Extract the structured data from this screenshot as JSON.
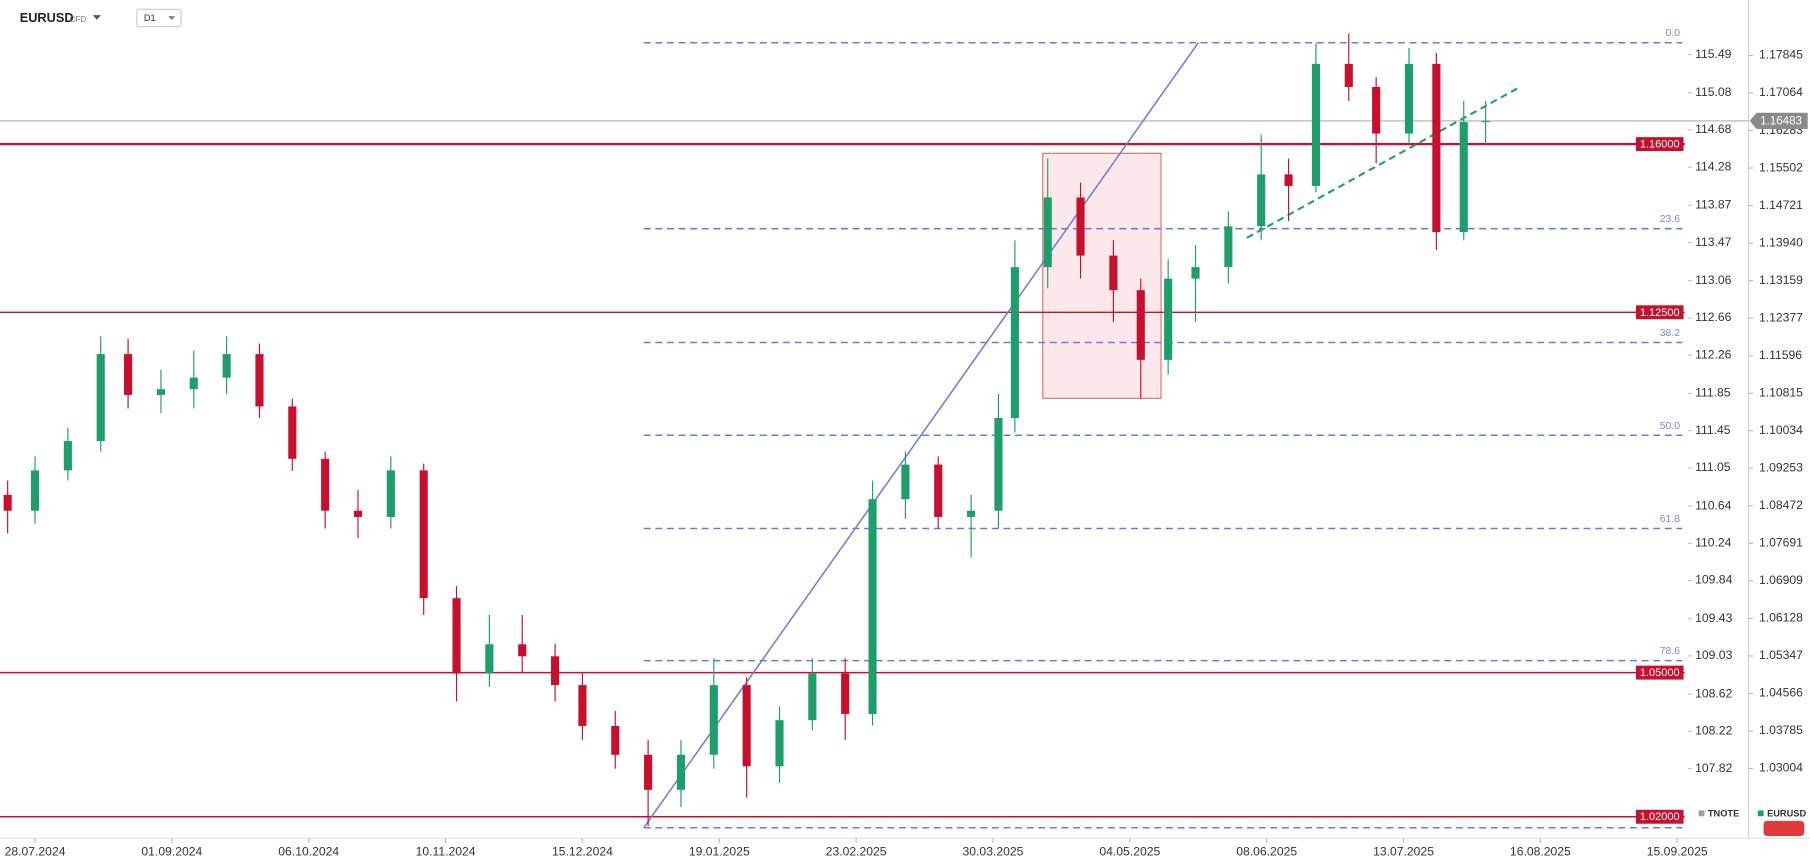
{
  "chart_data": {
    "type": "candlestick",
    "title": "EURUSD",
    "subtitle": "CFD",
    "timeframe": "D1",
    "xlim": [
      -6.4,
      302
    ],
    "xticks": [
      {
        "value": 0,
        "label": "28.07.2024"
      },
      {
        "value": 25,
        "label": "01.09.2024"
      },
      {
        "value": 50,
        "label": "06.10.2024"
      },
      {
        "value": 75,
        "label": "10.11.2024"
      },
      {
        "value": 100,
        "label": "15.12.2024"
      },
      {
        "value": 125,
        "label": "19.01.2025"
      },
      {
        "value": 150,
        "label": "23.02.2025"
      },
      {
        "value": 175,
        "label": "30.03.2025"
      },
      {
        "value": 200,
        "label": "04.05.2025"
      },
      {
        "value": 225,
        "label": "08.06.2025"
      },
      {
        "value": 250,
        "label": "13.07.2025"
      },
      {
        "value": 275,
        "label": "16.08.2025"
      },
      {
        "value": 300,
        "label": "15.09.2025"
      }
    ],
    "ylim": [
      1.016,
      1.19
    ],
    "yticks": [
      1.17845,
      1.17064,
      1.16283,
      1.15502,
      1.14721,
      {
        "value": 1.1394,
        "label": "1.13940"
      },
      1.13159,
      1.12377,
      1.11596,
      1.10815,
      1.10034,
      1.09253,
      1.08472,
      1.07691,
      1.06909,
      1.06128,
      1.05347,
      1.04566,
      1.03785,
      1.03004
    ],
    "y2lim": [
      107.096,
      116.076
    ],
    "y2ticks": [
      115.49,
      115.08,
      114.68,
      114.28,
      113.87,
      113.47,
      113.06,
      112.66,
      112.26,
      111.85,
      111.45,
      111.05,
      110.64,
      110.24,
      109.84,
      109.43,
      109.03,
      108.62,
      108.22,
      107.82
    ],
    "y2_series": {
      "name": "TNOTE",
      "color": "#9e9e9e"
    },
    "series": [
      {
        "name": "EURUSD",
        "color": "#1e9e6a",
        "down_color": "#c8102e",
        "x": [
          -5,
          0,
          6,
          12,
          17,
          23,
          29,
          35,
          41,
          47,
          53,
          59,
          65,
          71,
          77,
          83,
          89,
          95,
          100,
          106,
          112,
          118,
          124,
          130,
          136,
          142,
          148,
          153,
          159,
          165,
          171,
          176,
          179,
          185,
          191,
          197,
          202,
          207,
          212,
          218,
          224,
          229,
          234,
          240,
          245,
          251,
          256,
          261,
          265
        ],
        "open": [
          1.087,
          1.0837,
          1.0921,
          1.0982,
          1.1163,
          1.1078,
          1.109,
          1.1114,
          1.1163,
          1.1054,
          1.0945,
          1.0837,
          1.0824,
          1.0921,
          1.0655,
          1.0498,
          1.0559,
          1.0534,
          1.0474,
          1.0389,
          1.0329,
          1.0256,
          1.0329,
          1.0474,
          1.0305,
          1.0401,
          1.0498,
          1.0414,
          1.0861,
          1.0933,
          1.0824,
          1.0837,
          1.103,
          1.1344,
          1.1489,
          1.1368,
          1.1296,
          1.1151,
          1.132,
          1.1344,
          1.1429,
          1.1537,
          1.1513,
          1.1767,
          1.1719,
          1.1622,
          1.1767,
          1.1417,
          1.1646
        ],
        "high": [
          1.09,
          1.095,
          1.101,
          1.12,
          1.1195,
          1.113,
          1.117,
          1.12,
          1.1185,
          1.107,
          1.096,
          1.088,
          1.095,
          1.0935,
          1.068,
          1.062,
          1.062,
          1.056,
          1.05,
          1.042,
          1.036,
          1.036,
          1.053,
          1.049,
          1.043,
          1.053,
          1.053,
          1.09,
          1.096,
          1.095,
          1.087,
          1.108,
          1.14,
          1.157,
          1.152,
          1.14,
          1.132,
          1.136,
          1.139,
          1.146,
          1.162,
          1.157,
          1.181,
          1.183,
          1.174,
          1.18,
          1.179,
          1.169,
          1.169
        ],
        "low": [
          1.079,
          1.081,
          1.09,
          1.096,
          1.105,
          1.104,
          1.105,
          1.108,
          1.103,
          1.092,
          1.08,
          1.078,
          1.08,
          1.062,
          1.044,
          1.047,
          1.05,
          1.044,
          1.036,
          1.03,
          1.018,
          1.022,
          1.03,
          1.024,
          1.027,
          1.038,
          1.036,
          1.039,
          1.082,
          1.08,
          1.074,
          1.08,
          1.1,
          1.13,
          1.132,
          1.123,
          1.107,
          1.112,
          1.123,
          1.131,
          1.14,
          1.144,
          1.15,
          1.169,
          1.156,
          1.16,
          1.138,
          1.14,
          1.16
        ],
        "close": [
          1.0837,
          1.0921,
          1.0982,
          1.1163,
          1.1078,
          1.109,
          1.1114,
          1.1163,
          1.1054,
          1.0945,
          1.0837,
          1.0824,
          1.0921,
          1.0655,
          1.0498,
          1.0559,
          1.0534,
          1.0474,
          1.0389,
          1.0329,
          1.0256,
          1.0329,
          1.0474,
          1.0305,
          1.0401,
          1.0498,
          1.0414,
          1.0861,
          1.0933,
          1.0824,
          1.0837,
          1.103,
          1.1344,
          1.1489,
          1.1368,
          1.1296,
          1.1151,
          1.132,
          1.1344,
          1.1429,
          1.1537,
          1.1513,
          1.1767,
          1.1719,
          1.1622,
          1.1767,
          1.1417,
          1.1646,
          1.16483
        ]
      }
    ],
    "levels": [
      {
        "value": 1.16,
        "label": "1.16000"
      },
      {
        "value": 1.125,
        "label": "1.12500"
      },
      {
        "value": 1.05,
        "label": "1.05000"
      },
      {
        "value": 1.02,
        "label": "1.02000"
      }
    ],
    "level_color": "#c8102e",
    "current_price": 1.16483,
    "fib": {
      "x": [
        111.2,
        302
      ],
      "color": "#6e7bd9",
      "prices": [
        1.1811,
        1.1424,
        1.1187,
        1.0994,
        1.08,
        1.0525,
        1.0177
      ],
      "labels": [
        "0.0",
        "23.6",
        "38.2",
        "50.0",
        "61.8",
        "78.6",
        null
      ]
    },
    "trendlines": [
      {
        "x": [
          111.2,
          212.5
        ],
        "y": [
          1.0177,
          1.1811
        ],
        "color": "#6e7bd9",
        "dashed": false
      },
      {
        "x": [
          221.4,
          270.8
        ],
        "y": [
          1.1405,
          1.1716
        ],
        "color": "#1e9e6a",
        "dashed": true
      }
    ],
    "zone": {
      "x": [
        184.1,
        205.7
      ],
      "y": [
        1.1071,
        1.1581
      ],
      "color": "#f4b4b8"
    }
  }
}
